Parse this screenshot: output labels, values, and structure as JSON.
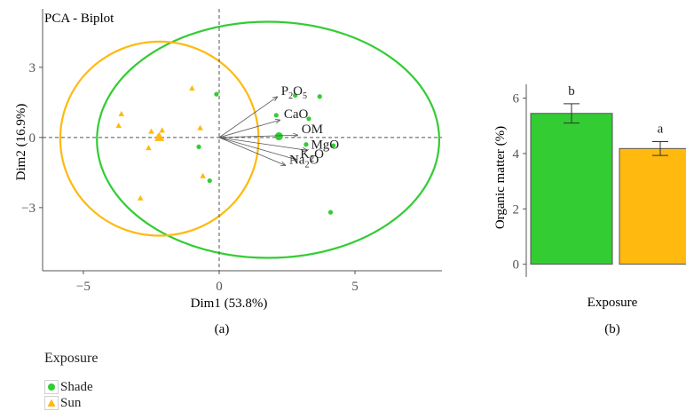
{
  "chart_data": [
    {
      "type": "scatter",
      "panel_label": "(a)",
      "title": "PCA - Biplot",
      "xlabel": "Dim1 (53.8%)",
      "ylabel": "Dim2 (16.9%)",
      "xlim": [
        -6.5,
        8.2
      ],
      "ylim": [
        -5.7,
        5.5
      ],
      "xticks": [
        -5,
        0,
        5
      ],
      "yticks": [
        -3,
        0,
        3
      ],
      "series": [
        {
          "name": "Shade",
          "color": "#33cc33",
          "marker": "circle",
          "points": [
            {
              "x": -0.1,
              "y": 1.85
            },
            {
              "x": 2.8,
              "y": 1.8
            },
            {
              "x": 3.7,
              "y": 1.75
            },
            {
              "x": 2.1,
              "y": 0.95
            },
            {
              "x": 3.3,
              "y": 0.8
            },
            {
              "x": -0.75,
              "y": -0.4
            },
            {
              "x": 4.2,
              "y": -0.35
            },
            {
              "x": -0.35,
              "y": -1.85
            },
            {
              "x": 4.1,
              "y": -3.2
            },
            {
              "x": 3.2,
              "y": -0.3
            }
          ],
          "centroid": {
            "x": 2.2,
            "y": 0.05
          },
          "ellipse": {
            "cx": 1.8,
            "cy": -0.1,
            "rx": 6.3,
            "ry": 5.05
          }
        },
        {
          "name": "Sun",
          "color": "#ffb90f",
          "marker": "triangle",
          "points": [
            {
              "x": -1.0,
              "y": 2.1
            },
            {
              "x": -3.6,
              "y": 1.0
            },
            {
              "x": -3.7,
              "y": 0.5
            },
            {
              "x": -2.5,
              "y": 0.25
            },
            {
              "x": -2.1,
              "y": 0.3
            },
            {
              "x": -0.7,
              "y": 0.4
            },
            {
              "x": -2.6,
              "y": -0.45
            },
            {
              "x": -0.6,
              "y": -1.65
            },
            {
              "x": -2.9,
              "y": -2.6
            },
            {
              "x": -2.25,
              "y": 0.05
            }
          ],
          "centroid": {
            "x": -2.2,
            "y": 0.0
          },
          "ellipse": {
            "cx": -2.2,
            "cy": -0.05,
            "rx": 3.65,
            "ry": 4.15
          }
        }
      ],
      "loadings": [
        {
          "label": "P₂O₅",
          "base": "P",
          "sub1": "2",
          "mid": "O",
          "sub2": "5",
          "x": 2.15,
          "y": 1.75
        },
        {
          "label": "CaO",
          "base": "CaO",
          "x": 2.25,
          "y": 0.75
        },
        {
          "label": "OM",
          "base": "OM",
          "x": 2.9,
          "y": 0.1
        },
        {
          "label": "MgO",
          "base": "MgO",
          "x": 3.25,
          "y": -0.55
        },
        {
          "label": "K₂O",
          "base": "K",
          "sub1": "2",
          "mid": "O",
          "x": 2.85,
          "y": -0.95
        },
        {
          "label": "Na₂O",
          "base": "Na",
          "sub1": "2",
          "mid": "O",
          "x": 2.45,
          "y": -1.2
        }
      ]
    },
    {
      "type": "bar",
      "panel_label": "(b)",
      "xlabel": "Exposure",
      "ylabel": "Organic matter (%)",
      "ylim": [
        -0.3,
        6.5
      ],
      "yticks": [
        0,
        2,
        4,
        6
      ],
      "bars": [
        {
          "category": "Shade",
          "value": 5.45,
          "error": 0.35,
          "letter": "b",
          "color": "#33cc33"
        },
        {
          "category": "Sun",
          "value": 4.18,
          "error": 0.25,
          "letter": "a",
          "color": "#ffb90f"
        }
      ]
    }
  ],
  "legend": {
    "title": "Exposure",
    "items": [
      {
        "label": "Shade",
        "color": "#33cc33",
        "marker": "circle"
      },
      {
        "label": "Sun",
        "color": "#ffb90f",
        "marker": "triangle"
      }
    ]
  }
}
